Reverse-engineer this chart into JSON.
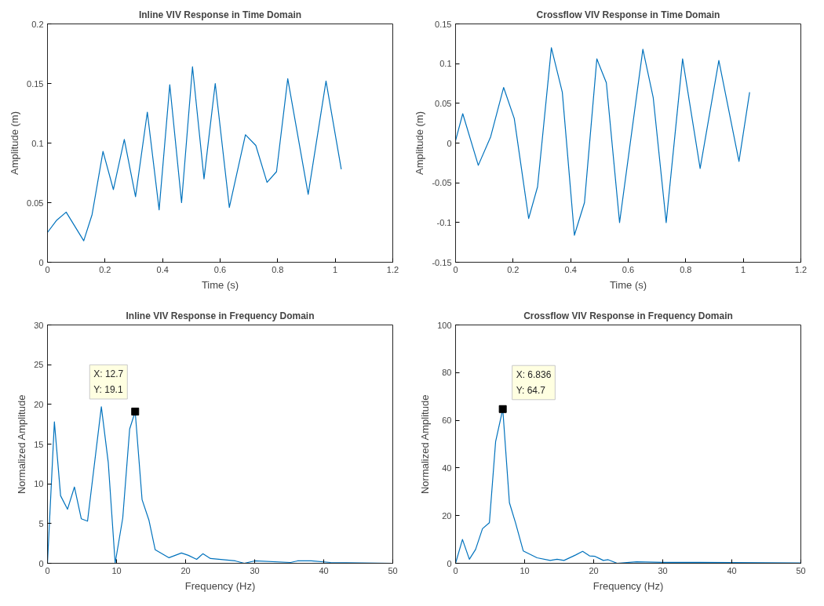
{
  "chart_data": [
    {
      "type": "line",
      "title": "Inline VIV Response in Time Domain",
      "xlabel": "Time (s)",
      "ylabel": "Amplitude (m)",
      "xlim": [
        0,
        1.2
      ],
      "xticks": [
        0,
        0.2,
        0.4,
        0.6,
        0.8,
        1,
        1.2
      ],
      "ylim": [
        0,
        0.2
      ],
      "yticks": [
        0,
        0.05,
        0.1,
        0.15,
        0.2
      ],
      "grid": false,
      "marker": "none",
      "line_style": "solid",
      "series": [
        {
          "color": "#0072bd",
          "x": [
            0,
            0.031,
            0.065,
            0.126,
            0.155,
            0.193,
            0.229,
            0.267,
            0.306,
            0.347,
            0.388,
            0.425,
            0.466,
            0.504,
            0.544,
            0.583,
            0.632,
            0.688,
            0.724,
            0.763,
            0.796,
            0.835,
            0.906,
            0.968,
            1.021
          ],
          "values": [
            0.025,
            0.035,
            0.042,
            0.018,
            0.04,
            0.093,
            0.061,
            0.103,
            0.055,
            0.126,
            0.044,
            0.149,
            0.05,
            0.164,
            0.07,
            0.15,
            0.046,
            0.107,
            0.098,
            0.067,
            0.076,
            0.154,
            0.057,
            0.152,
            0.078
          ]
        }
      ]
    },
    {
      "type": "line",
      "title": "Crossflow VIV Response in Time Domain",
      "xlabel": "Time (s)",
      "ylabel": "Amplitude (m)",
      "xlim": [
        0,
        1.2
      ],
      "xticks": [
        0,
        0.2,
        0.4,
        0.6,
        0.8,
        1,
        1.2
      ],
      "ylim": [
        -0.15,
        0.15
      ],
      "yticks": [
        -0.15,
        -0.1,
        -0.05,
        0,
        0.05,
        0.1,
        0.15
      ],
      "grid": false,
      "marker": "none",
      "line_style": "solid",
      "series": [
        {
          "color": "#0072bd",
          "x": [
            0,
            0.025,
            0.079,
            0.122,
            0.167,
            0.204,
            0.254,
            0.285,
            0.333,
            0.371,
            0.413,
            0.448,
            0.491,
            0.524,
            0.57,
            0.651,
            0.687,
            0.732,
            0.789,
            0.85,
            0.915,
            0.985,
            1.022
          ],
          "values": [
            0.003,
            0.037,
            -0.028,
            0.008,
            0.07,
            0.031,
            -0.095,
            -0.055,
            0.12,
            0.064,
            -0.116,
            -0.075,
            0.106,
            0.076,
            -0.1,
            0.118,
            0.057,
            -0.1,
            0.106,
            -0.032,
            0.104,
            -0.023,
            0.064
          ]
        }
      ]
    },
    {
      "type": "line",
      "title": "Inline VIV Response in Frequency Domain",
      "xlabel": "Frequency (Hz)",
      "ylabel": "Normalized Amplitude",
      "xlim": [
        0,
        50
      ],
      "xticks": [
        0,
        10,
        20,
        30,
        40,
        50
      ],
      "ylim": [
        0,
        30
      ],
      "yticks": [
        0,
        5,
        10,
        15,
        20,
        25,
        30
      ],
      "grid": false,
      "marker": "none",
      "line_style": "solid",
      "annotations": [
        {
          "text": "X: 12.7\nY: 19.1",
          "x": 12.7,
          "y": 19.1
        }
      ],
      "series": [
        {
          "color": "#0072bd",
          "x": [
            0,
            1.0,
            1.9,
            2.9,
            3.9,
            4.9,
            5.8,
            7.8,
            8.8,
            9.8,
            10.9,
            11.9,
            12.7,
            13.7,
            14.7,
            15.6,
            17.6,
            19.4,
            20.4,
            21.6,
            22.5,
            23.6,
            27.2,
            28.5,
            30,
            35.2,
            36.2,
            38.2,
            41,
            50
          ],
          "values": [
            0,
            17.8,
            8.5,
            6.8,
            9.6,
            5.6,
            5.3,
            19.7,
            12.7,
            0,
            5.7,
            16.9,
            19.1,
            8.0,
            5.4,
            1.7,
            0.7,
            1.3,
            1.0,
            0.5,
            1.2,
            0.6,
            0.3,
            0,
            0.3,
            0.1,
            0.3,
            0.3,
            0.1,
            0
          ]
        }
      ]
    },
    {
      "type": "line",
      "title": "Crossflow VIV Response in Frequency Domain",
      "xlabel": "Frequency (Hz)",
      "ylabel": "Normalized Amplitude",
      "xlim": [
        0,
        50
      ],
      "xticks": [
        0,
        10,
        20,
        30,
        40,
        50
      ],
      "ylim": [
        0,
        100
      ],
      "yticks": [
        0,
        20,
        40,
        60,
        80,
        100
      ],
      "grid": false,
      "marker": "none",
      "line_style": "solid",
      "annotations": [
        {
          "text": "X: 6.836\nY: 64.7",
          "x": 6.836,
          "y": 64.7
        }
      ],
      "series": [
        {
          "color": "#0072bd",
          "x": [
            0,
            1.0,
            2.0,
            2.9,
            3.9,
            4.9,
            5.8,
            6.836,
            7.8,
            8.7,
            9.8,
            11.8,
            13.7,
            14.7,
            15.7,
            17.4,
            18.4,
            19.4,
            20.2,
            21.4,
            22.1,
            23.4,
            26.2,
            30.2,
            35.4,
            50
          ],
          "values": [
            0,
            10,
            1.7,
            5.8,
            14.5,
            17,
            51,
            64.7,
            25.4,
            16.8,
            5.2,
            2.3,
            1.2,
            1.7,
            1.2,
            3.5,
            5,
            3.1,
            2.9,
            1.2,
            1.5,
            0,
            0.6,
            0.4,
            0.4,
            0.1
          ]
        }
      ]
    }
  ]
}
